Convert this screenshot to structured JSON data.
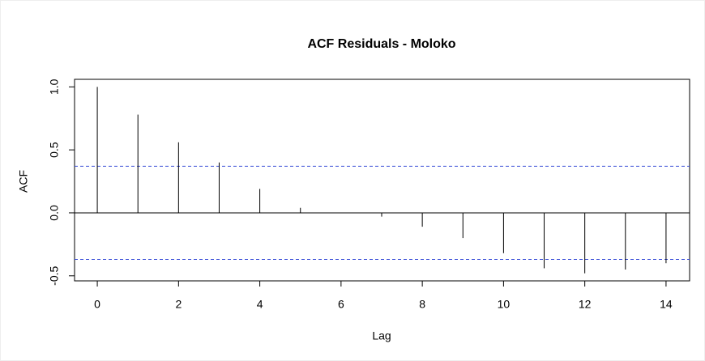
{
  "chart_data": {
    "type": "acf",
    "title": "ACF Residuals - Moloko",
    "x_label": "Lag",
    "y_label": "ACF",
    "x": [
      0,
      1,
      2,
      3,
      4,
      5,
      6,
      7,
      8,
      9,
      10,
      11,
      12,
      13,
      14
    ],
    "values": [
      1.0,
      0.78,
      0.56,
      0.4,
      0.19,
      0.04,
      0.0,
      -0.03,
      -0.11,
      -0.2,
      -0.32,
      -0.44,
      -0.48,
      -0.45,
      -0.4
    ],
    "color": "#000000",
    "confidence_bounds": [
      -0.37,
      0.37
    ],
    "confidence_color": "#3b4fd8",
    "xlim": [
      -0.56,
      14.58
    ],
    "ylim": [
      -0.54,
      1.06
    ],
    "xticks": [
      0,
      2,
      4,
      6,
      8,
      10,
      12,
      14
    ],
    "yticks": [
      -0.5,
      {
        "value": 0,
        "label": "0.0"
      },
      0.5,
      {
        "value": 1,
        "label": "1.0"
      }
    ]
  }
}
